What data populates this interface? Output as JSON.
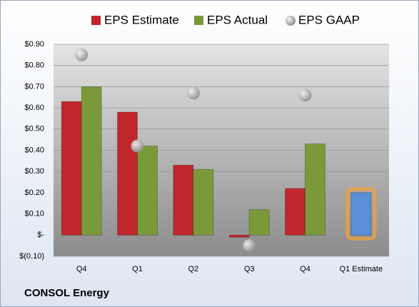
{
  "chart_data": {
    "type": "bar",
    "title": "CONSOL Energy",
    "categories": [
      "Q4",
      "Q1",
      "Q2",
      "Q3",
      "Q4",
      "Q1 Estimate"
    ],
    "series": [
      {
        "name": "EPS Estimate",
        "color": "#c0262c",
        "values": [
          0.63,
          0.58,
          0.33,
          -0.01,
          0.22,
          0.2
        ]
      },
      {
        "name": "EPS Actual",
        "color": "#7a9a3a",
        "values": [
          0.7,
          0.42,
          0.31,
          0.12,
          0.43,
          null
        ]
      },
      {
        "name": "EPS GAAP",
        "color": "#a8a8a8",
        "marker": "sphere",
        "values": [
          0.85,
          0.42,
          0.67,
          -0.05,
          0.66,
          null
        ]
      }
    ],
    "forecast_color": "#5b8fd6",
    "forecast_glow": "#f0a040",
    "ylim": [
      -0.1,
      0.9
    ],
    "yticks": [
      {
        "value": -0.1,
        "label": "$(0.10)"
      },
      {
        "value": 0,
        "label": "$-"
      },
      {
        "value": 0.1,
        "label": "$0.10"
      },
      {
        "value": 0.2,
        "label": "$0.20"
      },
      {
        "value": 0.3,
        "label": "$0.30"
      },
      {
        "value": 0.4,
        "label": "$0.40"
      },
      {
        "value": 0.5,
        "label": "$0.50"
      },
      {
        "value": 0.6,
        "label": "$0.60"
      },
      {
        "value": 0.7,
        "label": "$0.70"
      },
      {
        "value": 0.8,
        "label": "$0.80"
      },
      {
        "value": 0.9,
        "label": "$0.90"
      }
    ],
    "grid": true,
    "legend": "top"
  }
}
